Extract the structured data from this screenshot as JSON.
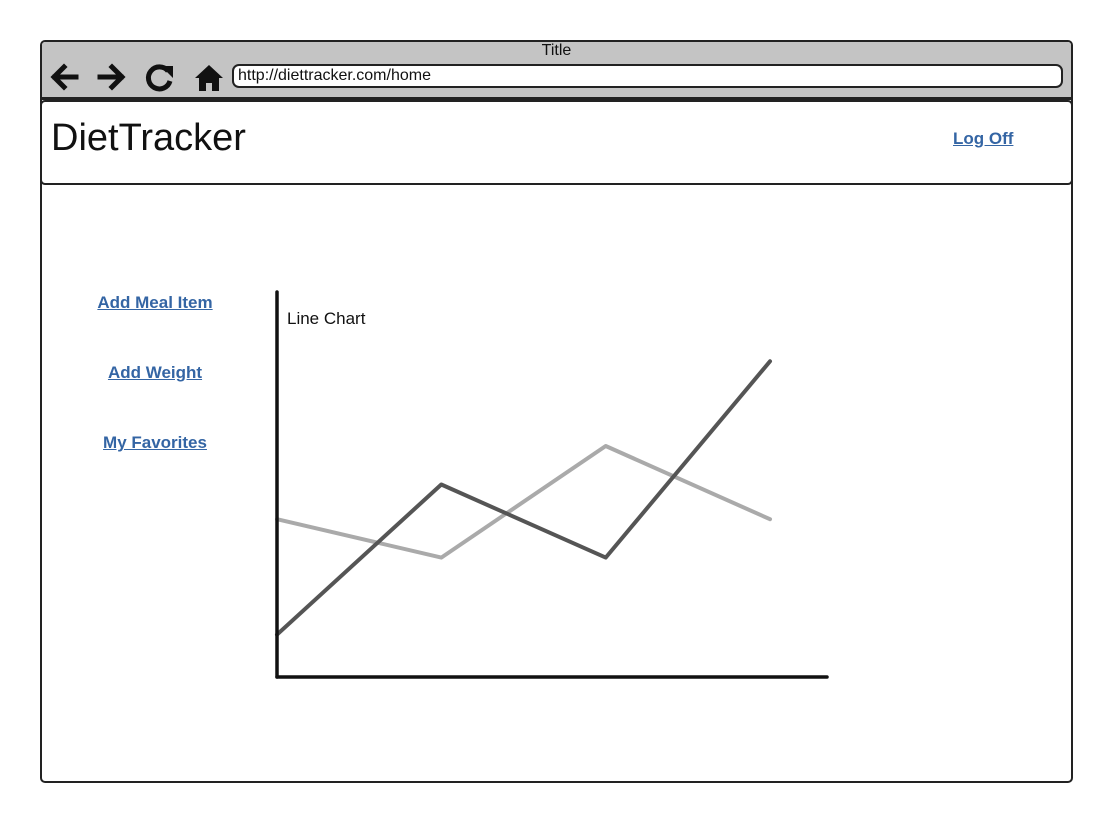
{
  "window": {
    "title": "Title",
    "url": "http://diettracker.com/home"
  },
  "nav_icons": [
    "back-arrow-icon",
    "forward-arrow-icon",
    "reload-icon",
    "home-icon"
  ],
  "header": {
    "brand": "DietTracker",
    "logoff_label": "Log Off"
  },
  "sidebar": {
    "items": [
      {
        "label": "Add Meal Item"
      },
      {
        "label": "Add Weight"
      },
      {
        "label": "My Favorites"
      }
    ]
  },
  "colors": {
    "link": "#3465a4",
    "chrome": "#c4c4c4",
    "series_dark": "#555555",
    "series_light": "#aaaaaa"
  },
  "chart_data": {
    "type": "line",
    "title": "Line Chart",
    "x": [
      0,
      1,
      2,
      3
    ],
    "ylim": [
      0,
      10
    ],
    "series": [
      {
        "values": [
          1.1,
          5.0,
          3.1,
          8.2
        ]
      },
      {
        "values": [
          4.1,
          3.1,
          6.0,
          4.1
        ]
      }
    ]
  }
}
